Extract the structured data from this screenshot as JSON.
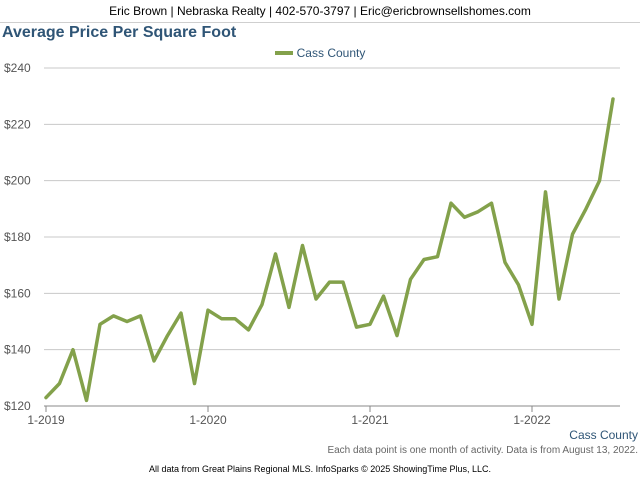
{
  "header": {
    "contact": "Eric Brown | Nebraska Realty | 402-570-3797 | Eric@ericbrownsellshomes.com"
  },
  "legend": {
    "series_label": "Cass County"
  },
  "footer": {
    "series_label": "Cass County",
    "note": "Each data point is one month of activity. Data is from August 13, 2022.",
    "source": "All data from Great Plains Regional MLS. InfoSparks © 2025 ShowingTime Plus, LLC."
  },
  "colors": {
    "series": "#83a14b",
    "title": "#2f5576",
    "grid": "#c8c8c8"
  },
  "chart_data": {
    "type": "line",
    "title": "Average Price Per Square Foot",
    "ylim": [
      120,
      240
    ],
    "yticks": [
      120,
      140,
      160,
      180,
      200,
      220,
      240
    ],
    "ytick_labels": [
      "$120",
      "$140",
      "$160",
      "$180",
      "$200",
      "$220",
      "$240"
    ],
    "xticks": [
      {
        "x": "2019-01",
        "label": "1-2019"
      },
      {
        "x": "2020-01",
        "label": "1-2020"
      },
      {
        "x": "2021-01",
        "label": "1-2021"
      },
      {
        "x": "2022-01",
        "label": "1-2022"
      }
    ],
    "x": [
      "2019-01",
      "2019-02",
      "2019-03",
      "2019-04",
      "2019-05",
      "2019-06",
      "2019-07",
      "2019-08",
      "2019-09",
      "2019-10",
      "2019-11",
      "2019-12",
      "2020-01",
      "2020-02",
      "2020-03",
      "2020-04",
      "2020-05",
      "2020-06",
      "2020-07",
      "2020-08",
      "2020-09",
      "2020-10",
      "2020-11",
      "2020-12",
      "2021-01",
      "2021-02",
      "2021-03",
      "2021-04",
      "2021-05",
      "2021-06",
      "2021-07",
      "2021-08",
      "2021-09",
      "2021-10",
      "2021-11",
      "2021-12",
      "2022-01",
      "2022-02",
      "2022-03",
      "2022-04",
      "2022-05",
      "2022-06",
      "2022-07"
    ],
    "series": [
      {
        "name": "Cass County",
        "values": [
          123,
          128,
          140,
          122,
          149,
          152,
          150,
          152,
          136,
          145,
          153,
          128,
          154,
          151,
          151,
          147,
          156,
          174,
          155,
          177,
          158,
          164,
          164,
          148,
          149,
          159,
          145,
          165,
          172,
          173,
          192,
          187,
          189,
          192,
          171,
          163,
          149,
          196,
          158,
          181,
          190,
          200,
          229
        ]
      }
    ],
    "grid": true,
    "legend_position": "top-center"
  }
}
